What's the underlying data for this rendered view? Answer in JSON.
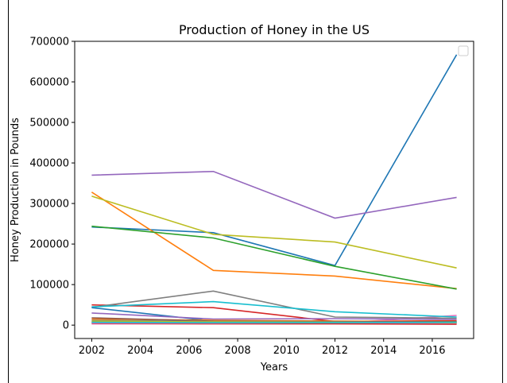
{
  "chart_data": {
    "type": "line",
    "title": "Production of Honey in the US",
    "xlabel": "Years",
    "ylabel": "Honey Production in Pounds",
    "x": [
      2002,
      2007,
      2012,
      2017
    ],
    "xlim": [
      2001.3,
      2017.7
    ],
    "ylim": [
      -33000,
      700000
    ],
    "xticks": [
      2002,
      2004,
      2006,
      2008,
      2010,
      2012,
      2014,
      2016
    ],
    "yticks": [
      0,
      100000,
      200000,
      300000,
      400000,
      500000,
      600000,
      700000
    ],
    "grid": false,
    "legend": {
      "placement": "top-right",
      "entries": []
    },
    "series": [
      {
        "color": "#1f77b4",
        "values": [
          242000,
          228000,
          147000,
          667000
        ]
      },
      {
        "color": "#ff7f0e",
        "values": [
          328000,
          135000,
          121000,
          90000
        ]
      },
      {
        "color": "#2ca02c",
        "values": [
          244000,
          215000,
          145000,
          89000
        ]
      },
      {
        "color": "#d62728",
        "values": [
          50000,
          43000,
          9000,
          11000
        ]
      },
      {
        "color": "#9467bd",
        "values": [
          370000,
          379000,
          264000,
          315000
        ]
      },
      {
        "color": "#8c564b",
        "values": [
          8000,
          6000,
          7000,
          6000
        ]
      },
      {
        "color": "#e377c2",
        "values": [
          3000,
          4000,
          4000,
          24000
        ]
      },
      {
        "color": "#7f7f7f",
        "values": [
          44000,
          84000,
          20000,
          17000
        ]
      },
      {
        "color": "#bcbd22",
        "values": [
          318000,
          224000,
          205000,
          141000
        ]
      },
      {
        "color": "#17becf",
        "values": [
          45000,
          58000,
          33000,
          20000
        ]
      },
      {
        "color": "#1f77b4",
        "values": [
          43000,
          10000,
          5000,
          4000
        ]
      },
      {
        "color": "#ff7f0e",
        "values": [
          15000,
          12000,
          10000,
          9000
        ]
      },
      {
        "color": "#2ca02c",
        "values": [
          6000,
          8000,
          7000,
          8000
        ]
      },
      {
        "color": "#d62728",
        "values": [
          4000,
          3000,
          3000,
          2000
        ]
      },
      {
        "color": "#9467bd",
        "values": [
          30000,
          15000,
          16000,
          14000
        ]
      },
      {
        "color": "#8c564b",
        "values": [
          18000,
          10000,
          9000,
          8000
        ]
      },
      {
        "color": "#e377c2",
        "values": [
          5000,
          5000,
          6000,
          5000
        ]
      },
      {
        "color": "#7f7f7f",
        "values": [
          12000,
          9000,
          8000,
          7000
        ]
      },
      {
        "color": "#bcbd22",
        "values": [
          10000,
          8000,
          7000,
          6000
        ]
      },
      {
        "color": "#17becf",
        "values": [
          7000,
          6000,
          6000,
          7000
        ]
      }
    ]
  }
}
